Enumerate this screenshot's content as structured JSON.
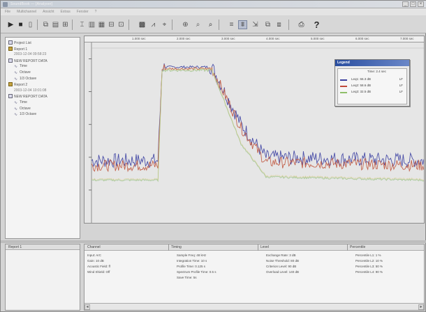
{
  "window": {
    "title": "SoundBook — [Analyser]",
    "close_label": "×"
  },
  "menu": [
    "File",
    "Multichannel",
    "Ansicht",
    "Extras",
    "Fenster",
    "?"
  ],
  "tree": {
    "items": [
      {
        "label": "Project List",
        "kind": "folder",
        "level": 0
      },
      {
        "label": "Report 1",
        "kind": "doc",
        "level": 0
      },
      {
        "label": "2003-12-04 09:58:23",
        "kind": "date",
        "level": 1
      },
      {
        "label": "NEW REPORT DATA",
        "kind": "folder",
        "level": 0
      },
      {
        "label": "Time",
        "kind": "wave",
        "level": 1
      },
      {
        "label": "Octave",
        "kind": "wave",
        "level": 1
      },
      {
        "label": "1/3 Octave",
        "kind": "wave",
        "level": 1
      },
      {
        "label": "Report 2",
        "kind": "doc",
        "level": 0
      },
      {
        "label": "2003-12-04 10:01:08",
        "kind": "date",
        "level": 1
      },
      {
        "label": "NEW REPORT DATA",
        "kind": "folder",
        "level": 0
      },
      {
        "label": "Time",
        "kind": "wave",
        "level": 1
      },
      {
        "label": "Octave",
        "kind": "wave",
        "level": 1
      },
      {
        "label": "1/3 Octave",
        "kind": "wave",
        "level": 1
      }
    ]
  },
  "ruler": {
    "ticks": [
      "1.000 sec",
      "2.000 sec",
      "3.000 sec",
      "4.000 sec",
      "5.000 sec",
      "6.000 sec",
      "7.000 sec"
    ]
  },
  "legend": {
    "title": "Legend",
    "time": "Time: 2.4 sec",
    "rows": [
      {
        "label": "Leq1: 66.3 dB",
        "value": "LF",
        "color": "#3b3f9e"
      },
      {
        "label": "Leq2: 58.6 dB",
        "value": "LF",
        "color": "#c0493a"
      },
      {
        "label": "Leq3: 32.5 dB",
        "value": "LF",
        "color": "#8fbf6a"
      }
    ]
  },
  "colors": {
    "series_blue": "#4b4fa8",
    "series_red": "#c3634d",
    "series_yellow": "#d6c56a",
    "series_green": "#a8c99a"
  },
  "chart_data": {
    "type": "line",
    "x_range": [
      0,
      8
    ],
    "series": [
      {
        "x": [
          0,
          1.6,
          1.7,
          2.9,
          3.6,
          4.2,
          8
        ],
        "y": [
          38,
          38,
          95,
          95,
          60,
          40,
          38
        ]
      },
      {
        "x": [
          0,
          1.6,
          1.7,
          2.9,
          3.6,
          4.2,
          8
        ],
        "y": [
          35,
          35,
          94,
          94,
          58,
          37,
          35
        ]
      },
      {
        "x": [
          0,
          1.6,
          1.7,
          2.9,
          3.6,
          4.2,
          8
        ],
        "y": [
          26,
          26,
          93,
          93,
          48,
          28,
          26
        ]
      }
    ]
  },
  "bottom_left": {
    "header": "Report 1"
  },
  "info": {
    "columns": [
      "Channel",
      "Timing",
      "Level",
      "Percentile"
    ],
    "channel": [
      "Input: ArC",
      "Gain: 10 dB",
      "Acoustic Field: ff",
      "Wind Shield: Off"
    ],
    "timing": [
      "Sample Freq: 48 kHz",
      "Integration Time: 10 s",
      "Profile Time: 0.125 s",
      "Spectrum Profile Time: 0.5 s",
      "Save Time: 5s"
    ],
    "level": [
      "Exchange Rate: 3 dB",
      "Noise Threshold: 80 dB",
      "Criterion Level: 90 dB",
      "Overload Level: 140 dB"
    ],
    "percentile": [
      "Percentile L1: 1 %",
      "Percentile L2: 10 %",
      "Percentile L3: 50 %",
      "Percentile L4: 90 %"
    ]
  }
}
